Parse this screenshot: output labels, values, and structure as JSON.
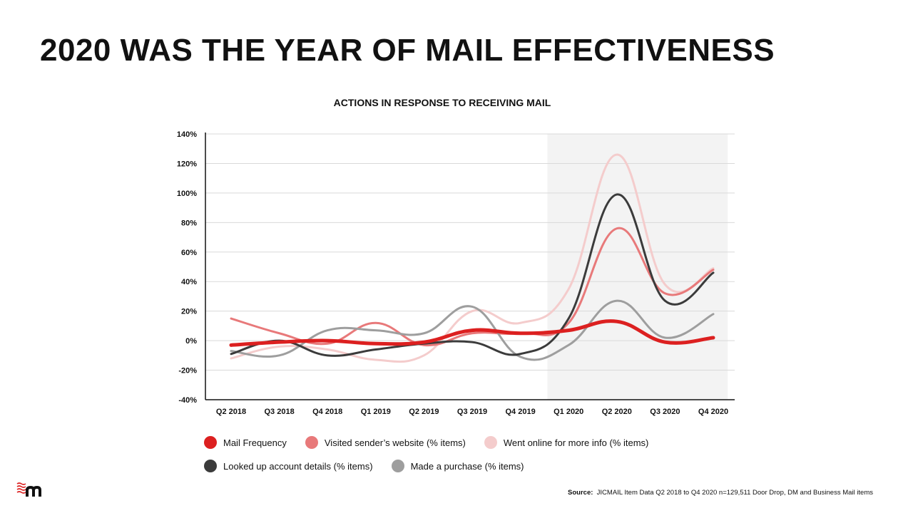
{
  "page": {
    "title": "2020 WAS THE YEAR OF MAIL EFFECTIVENESS",
    "source_label": "Source:",
    "source_text": "JICMAIL Item Data Q2 2018 to Q4 2020 n=129,511 Door Drop, DM and Business Mail items"
  },
  "chart_data": {
    "type": "line",
    "title": "ACTIONS IN RESPONSE TO RECEIVING MAIL",
    "xlabel": "",
    "ylabel": "",
    "categories": [
      "Q2 2018",
      "Q3 2018",
      "Q4 2018",
      "Q1 2019",
      "Q2 2019",
      "Q3 2019",
      "Q4 2019",
      "Q1 2020",
      "Q2 2020",
      "Q3 2020",
      "Q4 2020"
    ],
    "ylim": [
      -40,
      140
    ],
    "yticks": [
      "140%",
      "120%",
      "100%",
      "80%",
      "60%",
      "40%",
      "20%",
      "0%",
      "-20%",
      "-40%"
    ],
    "ytick_values": [
      140,
      120,
      100,
      80,
      60,
      40,
      20,
      0,
      -20,
      -40
    ],
    "grid": true,
    "highlight_range": [
      "Q1 2020",
      "Q4 2020"
    ],
    "legend_position": "bottom",
    "series": [
      {
        "name": "Went online for more info (% items)",
        "color": "#f4cccc",
        "width": 3,
        "values": [
          -12,
          -4,
          -6,
          -13,
          -10,
          20,
          12,
          35,
          126,
          38,
          49
        ]
      },
      {
        "name": "Visited sender’s website (% items)",
        "color": "#e8797a",
        "width": 3,
        "values": [
          15,
          5,
          -2,
          12,
          -3,
          5,
          5,
          12,
          76,
          32,
          48
        ]
      },
      {
        "name": "Made a purchase (% items)",
        "color": "#9e9e9e",
        "width": 3,
        "values": [
          -7,
          -10,
          7,
          7,
          5,
          23,
          -11,
          -3,
          27,
          2,
          18
        ]
      },
      {
        "name": "Looked up account details (% items)",
        "color": "#3b3b3b",
        "width": 3,
        "values": [
          -9,
          0,
          -10,
          -6,
          -2,
          -1,
          -9,
          15,
          99,
          27,
          46
        ]
      },
      {
        "name": "Mail Frequency",
        "color": "#dc2020",
        "width": 5,
        "values": [
          -3,
          -1,
          0,
          -2,
          -1,
          7,
          5,
          7,
          13,
          -1,
          2
        ]
      }
    ],
    "legend": [
      {
        "name": "Mail Frequency",
        "color": "#dc2020"
      },
      {
        "name": "Visited sender’s website (% items)",
        "color": "#e8797a"
      },
      {
        "name": "Went online for more info (% items)",
        "color": "#f4cccc"
      },
      {
        "name": "Looked up account details (% items)",
        "color": "#3b3b3b"
      },
      {
        "name": "Made a purchase (% items)",
        "color": "#9e9e9e"
      }
    ]
  }
}
